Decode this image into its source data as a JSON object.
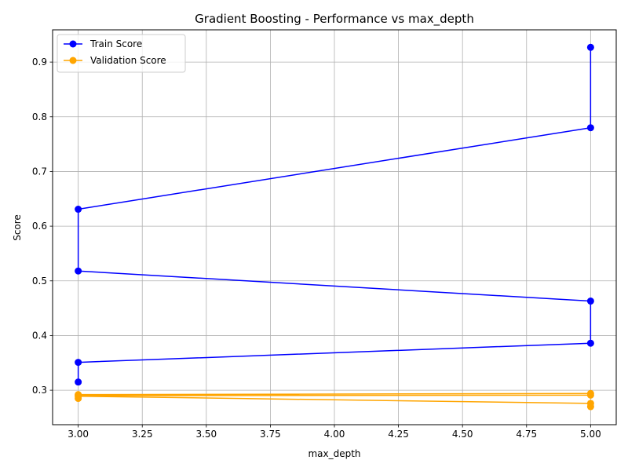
{
  "chart_data": {
    "type": "line",
    "title": "Gradient Boosting - Performance vs max_depth",
    "xlabel": "max_depth",
    "ylabel": "Score",
    "xlim": [
      2.9,
      5.1
    ],
    "ylim": [
      0.237,
      0.959
    ],
    "xticks": [
      3.0,
      3.25,
      3.5,
      3.75,
      4.0,
      4.25,
      4.5,
      4.75,
      5.0
    ],
    "xtick_labels": [
      "3.00",
      "3.25",
      "3.50",
      "3.75",
      "4.00",
      "4.25",
      "4.50",
      "4.75",
      "5.00"
    ],
    "yticks": [
      0.3,
      0.4,
      0.5,
      0.6,
      0.7,
      0.8,
      0.9
    ],
    "ytick_labels": [
      "0.3",
      "0.4",
      "0.5",
      "0.6",
      "0.7",
      "0.8",
      "0.9"
    ],
    "grid": true,
    "legend_position": "top-left",
    "series": [
      {
        "name": "Train Score",
        "color": "#0000ff",
        "marker": "circle",
        "x": [
          3,
          3,
          5,
          5,
          3,
          3,
          5,
          5
        ],
        "y": [
          0.315,
          0.351,
          0.386,
          0.463,
          0.518,
          0.631,
          0.78,
          0.927
        ]
      },
      {
        "name": "Validation Score",
        "color": "#ffa500",
        "marker": "circle",
        "x": [
          3,
          3,
          5,
          5,
          3,
          3,
          5,
          5
        ],
        "y": [
          0.285,
          0.29,
          0.291,
          0.294,
          0.292,
          0.289,
          0.276,
          0.27
        ]
      }
    ]
  }
}
